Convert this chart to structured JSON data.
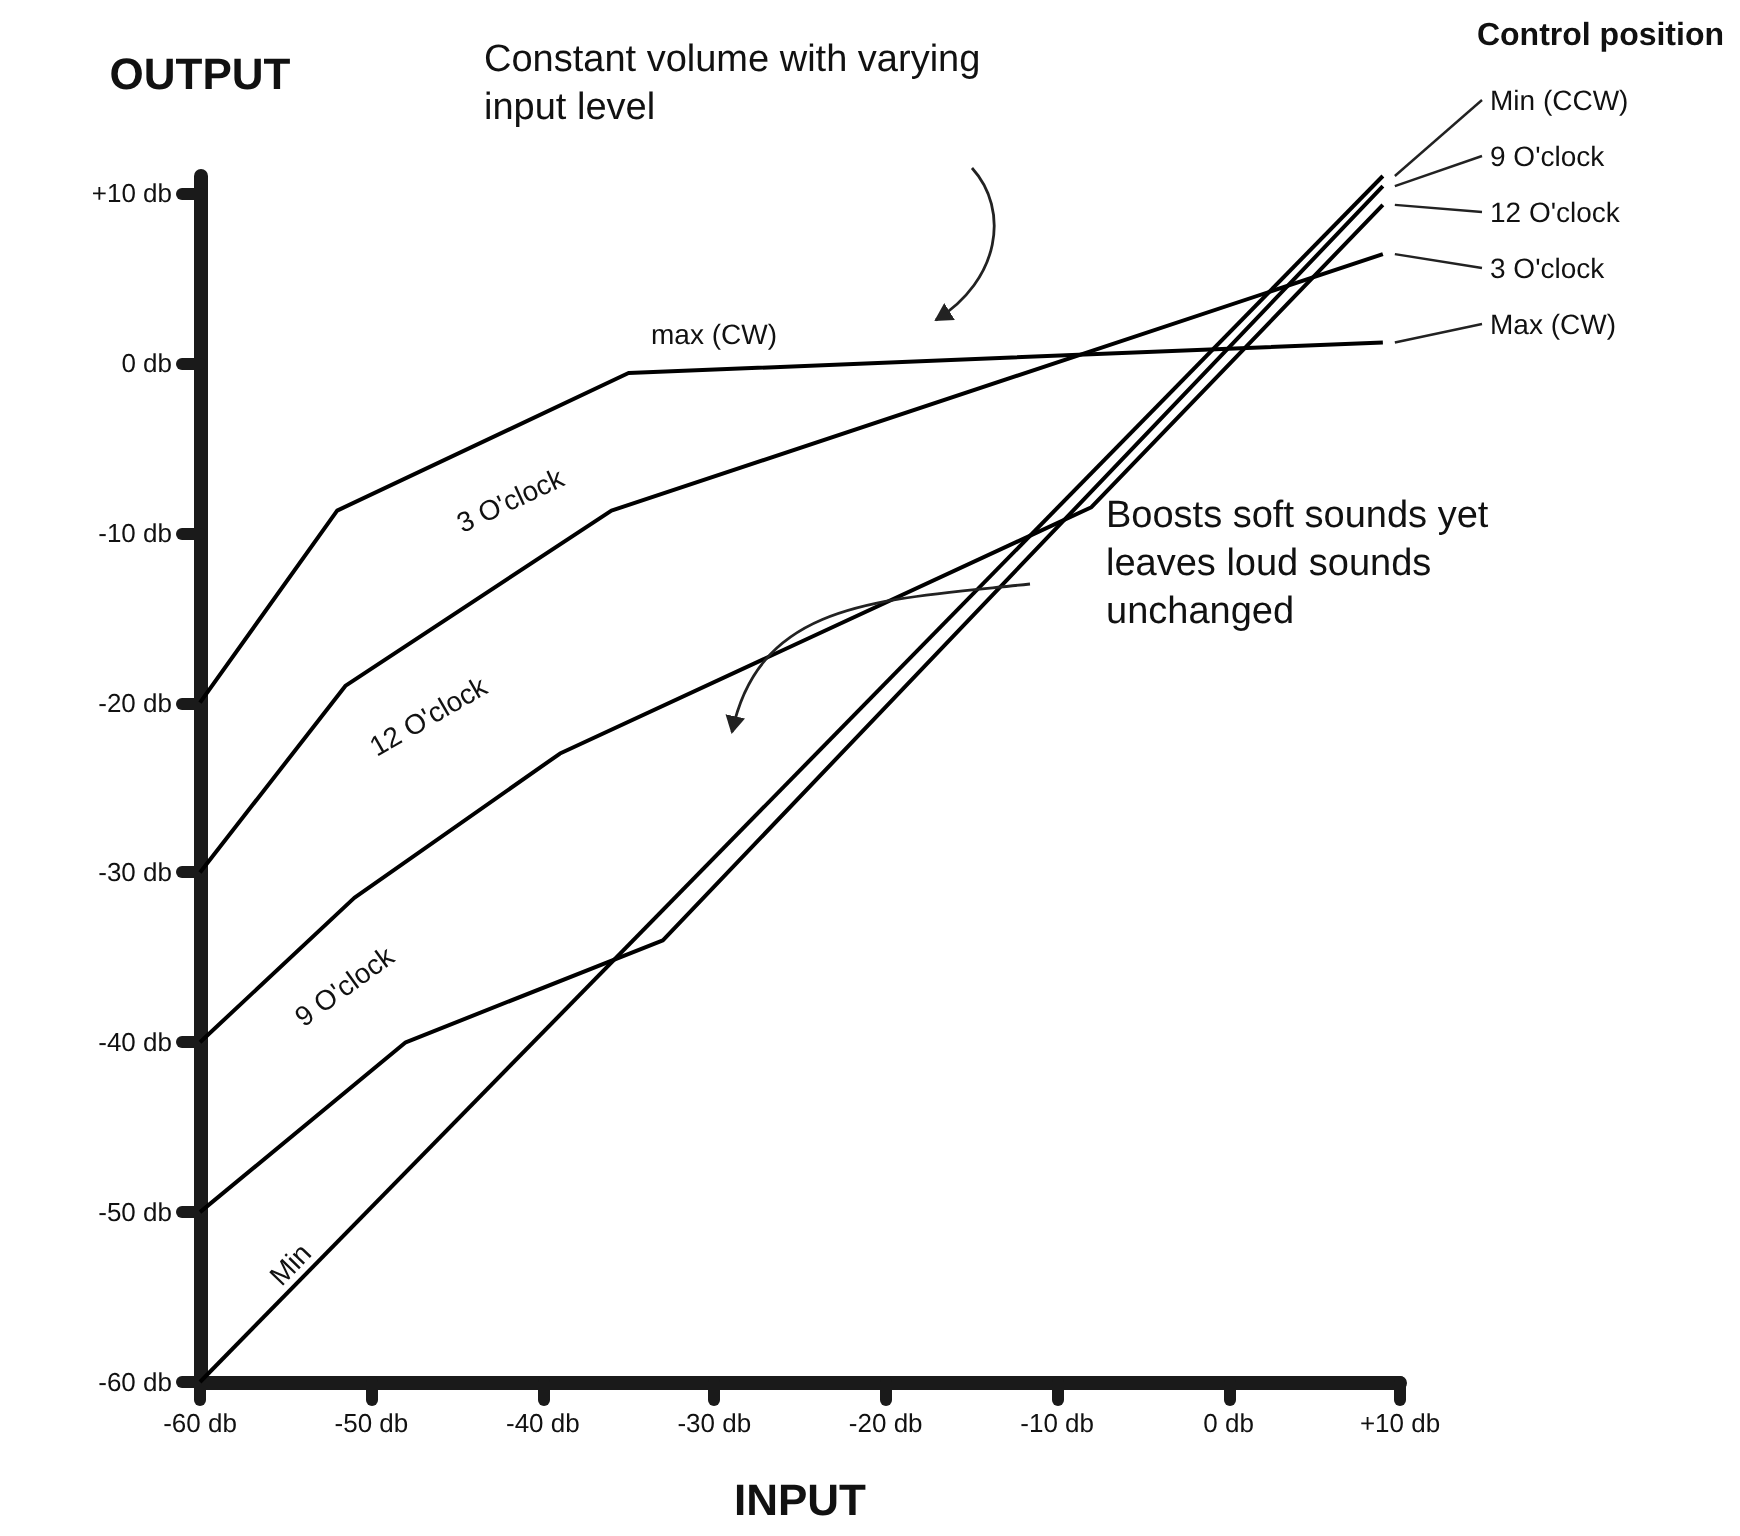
{
  "chart_data": {
    "type": "line",
    "xlabel": "INPUT",
    "ylabel": "OUTPUT",
    "legend_title": "Control position",
    "legend": "top right",
    "xlim": [
      -60,
      10
    ],
    "ylim": [
      -60,
      11
    ],
    "xticks": [
      {
        "value": -60,
        "label": "-60 db"
      },
      {
        "value": -50,
        "label": "-50 db"
      },
      {
        "value": -40,
        "label": "-40 db"
      },
      {
        "value": -30,
        "label": "-30 db"
      },
      {
        "value": -20,
        "label": "-20 db"
      },
      {
        "value": -10,
        "label": "-10 db"
      },
      {
        "value": 0,
        "label": "0 db"
      },
      {
        "value": 10,
        "label": "+10 db"
      }
    ],
    "yticks": [
      {
        "value": -60,
        "label": "-60 db"
      },
      {
        "value": -50,
        "label": "-50 db"
      },
      {
        "value": -40,
        "label": "-40 db"
      },
      {
        "value": -30,
        "label": "-30 db"
      },
      {
        "value": -20,
        "label": "-20 db"
      },
      {
        "value": -10,
        "label": "-10 db"
      },
      {
        "value": 0,
        "label": "0 db"
      },
      {
        "value": 10,
        "label": "+10 db"
      }
    ],
    "grid": false,
    "marker": "none",
    "line_style": "solid",
    "series": [
      {
        "name": "Min (CCW)",
        "color": "#000000",
        "x": [
          -60,
          9
        ],
        "values": [
          -60,
          11
        ]
      },
      {
        "name": "9 O'clock",
        "color": "#000000",
        "x": [
          -60,
          -48,
          -33,
          9
        ],
        "values": [
          -50,
          -40,
          -34,
          10.4
        ]
      },
      {
        "name": "12 O'clock",
        "color": "#000000",
        "x": [
          -60,
          -51,
          -39,
          -8,
          9
        ],
        "values": [
          -40,
          -31.5,
          -23,
          -8.5,
          9.3
        ]
      },
      {
        "name": "3 O'clock",
        "color": "#000000",
        "x": [
          -60,
          -51.5,
          -36,
          9
        ],
        "values": [
          -30,
          -19,
          -8.7,
          6.4
        ]
      },
      {
        "name": "Max (CW)",
        "color": "#000000",
        "x": [
          -60,
          -52,
          -35,
          9
        ],
        "values": [
          -20,
          -8.7,
          -0.6,
          1.2
        ]
      }
    ],
    "annotations": [
      "Constant volume with varying input level",
      "Boosts soft sounds yet leaves loud sounds unchanged",
      "max (CW)",
      "3 O'clock",
      "12 O'clock",
      "9 O'clock",
      "Min"
    ]
  }
}
